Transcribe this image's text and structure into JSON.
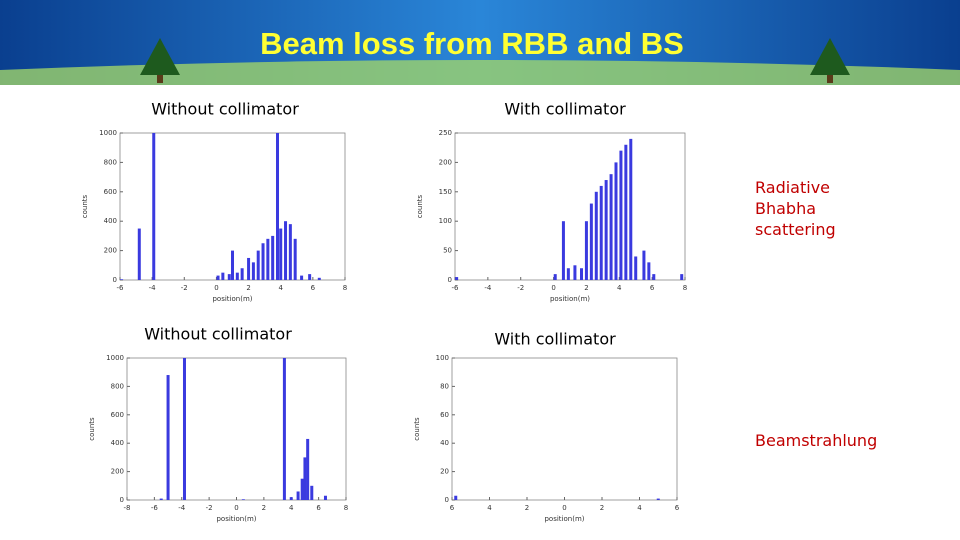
{
  "title": "Beam loss from RBB and BS",
  "annotations": [
    "Radiative Bhabha scattering",
    "Beamstrahlung"
  ],
  "chart_data": [
    {
      "type": "bar",
      "title": "Without collimator",
      "x_label": "position(m)",
      "y_label": "counts",
      "color": "#3a3adf",
      "x": [
        -5.9,
        -4.8,
        -3.9,
        0.1,
        0.4,
        0.8,
        1.0,
        1.3,
        1.6,
        2.0,
        2.3,
        2.6,
        2.9,
        3.2,
        3.5,
        3.8,
        4.0,
        4.3,
        4.6,
        4.9,
        5.3,
        5.8,
        6.4
      ],
      "values": [
        5,
        350,
        1000,
        30,
        50,
        40,
        200,
        50,
        80,
        150,
        120,
        200,
        250,
        280,
        300,
        1000,
        350,
        400,
        380,
        280,
        30,
        40,
        15
      ],
      "xlim": [
        -6,
        8
      ],
      "ylim": [
        0,
        1000
      ],
      "xticks": [
        -6,
        -4,
        -2,
        0,
        2,
        4,
        6,
        8
      ],
      "yticks": [
        0,
        200,
        400,
        600,
        800,
        1000
      ]
    },
    {
      "type": "bar",
      "title": "With collimator",
      "x_label": "position(m)",
      "y_label": "counts",
      "color": "#3a3adf",
      "x": [
        -5.9,
        0.1,
        0.6,
        0.9,
        1.3,
        1.7,
        2.0,
        2.3,
        2.6,
        2.9,
        3.2,
        3.5,
        3.8,
        4.1,
        4.4,
        4.7,
        5.0,
        5.5,
        5.8,
        6.1,
        7.8
      ],
      "values": [
        5,
        10,
        100,
        20,
        25,
        20,
        100,
        130,
        150,
        160,
        170,
        180,
        200,
        220,
        230,
        240,
        40,
        50,
        30,
        10,
        10
      ],
      "xlim": [
        -6,
        8
      ],
      "ylim": [
        0,
        250
      ],
      "xticks": [
        -6,
        -4,
        -2,
        0,
        2,
        4,
        6,
        8
      ],
      "yticks": [
        0,
        50,
        100,
        150,
        200,
        250
      ]
    },
    {
      "type": "bar",
      "title": "Without collimator",
      "x_label": "position(m)",
      "y_label": "counts",
      "color": "#3a3adf",
      "x": [
        -5.5,
        -5.0,
        -3.8,
        0.5,
        3.5,
        4.0,
        4.5,
        4.8,
        5.0,
        5.2,
        5.5,
        6.5
      ],
      "values": [
        10,
        880,
        1000,
        5,
        1000,
        20,
        60,
        150,
        300,
        430,
        100,
        30
      ],
      "xlim": [
        -8,
        8
      ],
      "ylim": [
        0,
        1000
      ],
      "xticks": [
        -8,
        -6,
        -4,
        -2,
        0,
        2,
        4,
        6,
        8
      ],
      "yticks": [
        0,
        200,
        400,
        600,
        800,
        1000
      ]
    },
    {
      "type": "bar",
      "title": "With collimator",
      "x_label": "position(m)",
      "y_label": "counts",
      "color": "#3a3adf",
      "x": [
        -5.8,
        5.0
      ],
      "values": [
        3,
        1
      ],
      "xlim": [
        -6,
        6
      ],
      "ylim": [
        0,
        100
      ],
      "xticks": [
        {
          "value": -6,
          "label": "6"
        },
        {
          "value": -4,
          "label": "4"
        },
        {
          "value": -2,
          "label": "2"
        },
        0,
        2,
        4,
        6
      ],
      "yticks": [
        0,
        20,
        40,
        60,
        80,
        100
      ]
    }
  ]
}
